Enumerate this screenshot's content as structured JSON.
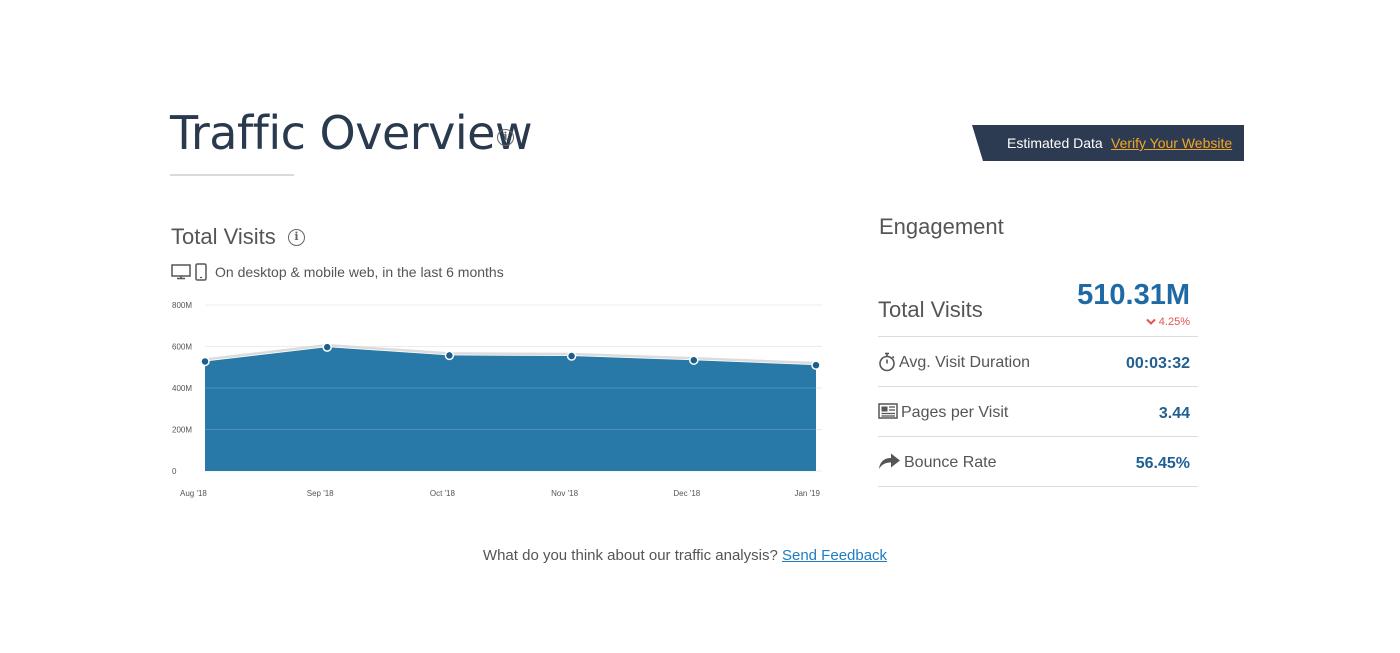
{
  "header": {
    "title": "Traffic Overview",
    "info_icon": "i",
    "banner": {
      "label": "Estimated Data",
      "link": "Verify Your Website"
    }
  },
  "visits": {
    "title": "Total Visits",
    "info_icon": "i",
    "device_desc": "On desktop & mobile web, in the last 6 months"
  },
  "chart_data": {
    "type": "area",
    "categories": [
      "Aug '18",
      "Sep '18",
      "Oct '18",
      "Nov '18",
      "Dec '18",
      "Jan '19"
    ],
    "values": [
      528,
      597,
      557,
      554,
      534,
      510
    ],
    "y_tick_labels": [
      "0",
      "200M",
      "400M",
      "600M",
      "800M"
    ],
    "ylim": [
      0,
      800
    ],
    "unit": "M",
    "fill_color": "#2878a8",
    "marker_color": "#1c5f8a",
    "grid": true
  },
  "engagement": {
    "title": "Engagement",
    "total": {
      "label": "Total Visits",
      "value": "510.31M",
      "change": "4.25%",
      "change_direction": "down",
      "change_color": "#e0554e"
    },
    "metrics": [
      {
        "icon": "stopwatch-icon",
        "label": "Avg. Visit Duration",
        "value": "00:03:32"
      },
      {
        "icon": "pages-icon",
        "label": "Pages per Visit",
        "value": "3.44"
      },
      {
        "icon": "bounce-arrow-icon",
        "label": "Bounce Rate",
        "value": "56.45%"
      }
    ]
  },
  "feedback": {
    "text": "What do you think about our traffic analysis?",
    "link": "Send Feedback"
  },
  "colors": {
    "title": "#2a3a4e",
    "accent": "#1f6aa5",
    "banner_bg": "#2c3b52",
    "banner_link": "#f5a623",
    "feedback_link": "#1f7cc1"
  }
}
